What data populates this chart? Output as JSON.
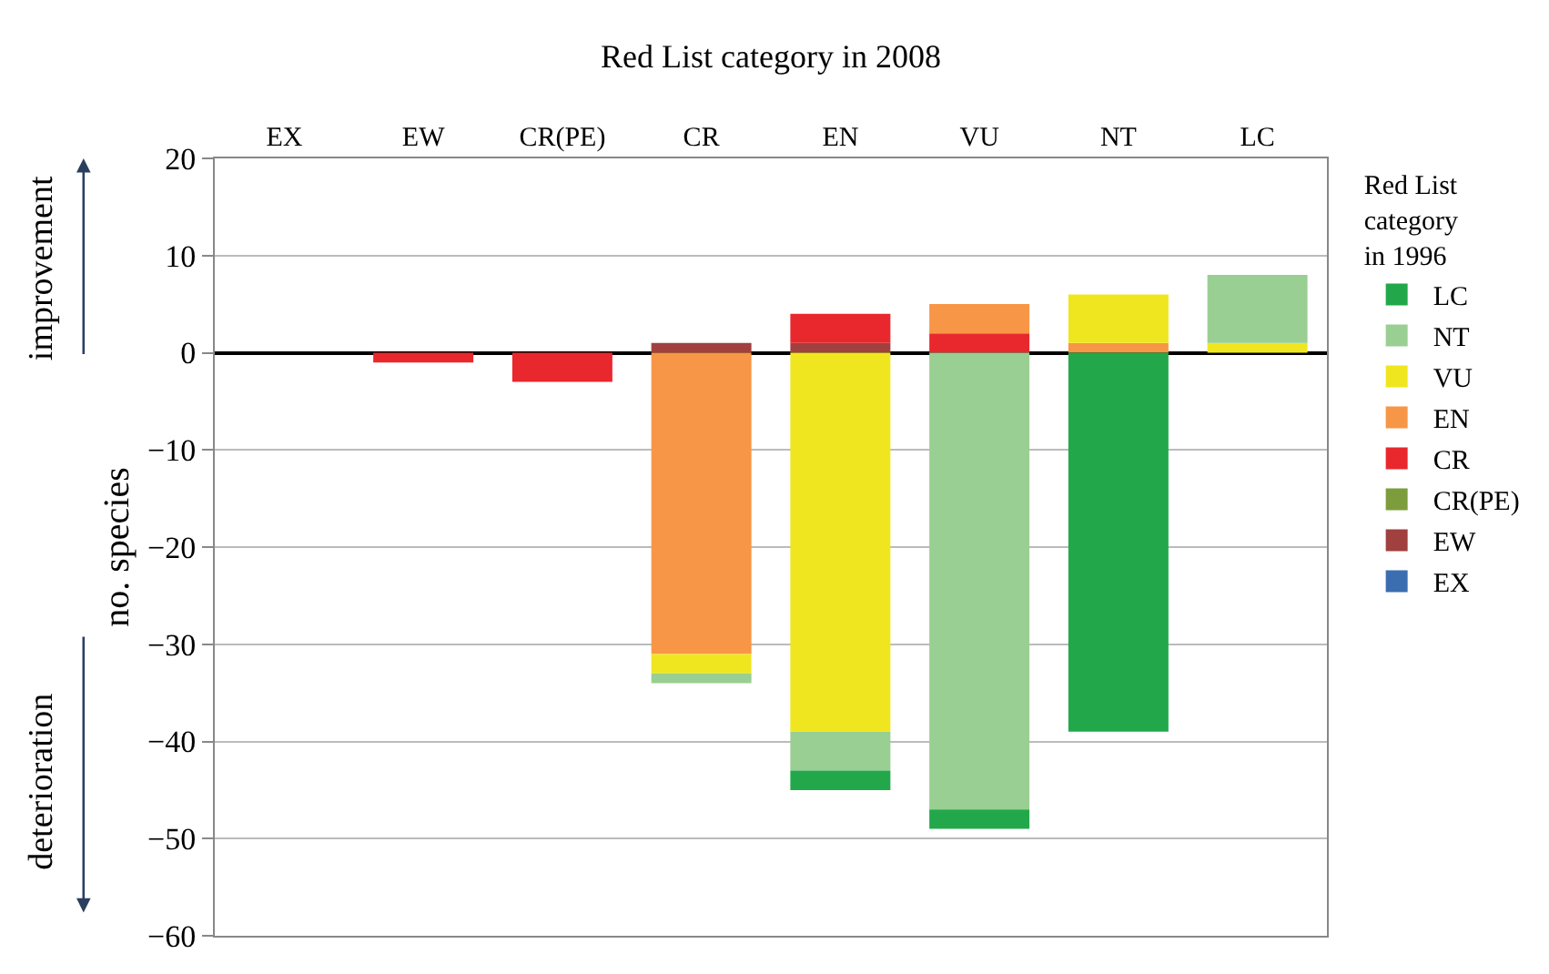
{
  "chart_data": {
    "type": "bar",
    "stacked": true,
    "title": "Red List category in 2008",
    "ylabel": "no. species",
    "legend_title": "Red List category in 1996",
    "categories": [
      "EX",
      "EW",
      "CR(PE)",
      "CR",
      "EN",
      "VU",
      "NT",
      "LC"
    ],
    "series": [
      {
        "name": "EX",
        "color": "#3a6eb0",
        "values": [
          null,
          null,
          null,
          null,
          null,
          null,
          null,
          null
        ]
      },
      {
        "name": "EW",
        "color": "#a0403f",
        "values": [
          null,
          null,
          null,
          1,
          1,
          null,
          null,
          null
        ]
      },
      {
        "name": "CR(PE)",
        "color": "#7d9d3c",
        "values": [
          null,
          null,
          null,
          null,
          null,
          null,
          null,
          null
        ]
      },
      {
        "name": "CR",
        "color": "#e8282d",
        "values": [
          null,
          -1,
          -3,
          null,
          3,
          2,
          null,
          null
        ]
      },
      {
        "name": "EN",
        "color": "#f79646",
        "values": [
          null,
          null,
          null,
          -31,
          null,
          3,
          1,
          null
        ]
      },
      {
        "name": "VU",
        "color": "#f0e620",
        "values": [
          null,
          null,
          null,
          -2,
          -39,
          null,
          5,
          1
        ]
      },
      {
        "name": "NT",
        "color": "#99cf92",
        "values": [
          null,
          null,
          null,
          -1,
          -4,
          -47,
          null,
          7
        ]
      },
      {
        "name": "LC",
        "color": "#22a84a",
        "values": [
          null,
          null,
          null,
          null,
          -2,
          -2,
          -39,
          null
        ]
      }
    ],
    "ylim": [
      -60,
      20
    ],
    "yticks": [
      -60,
      -50,
      -40,
      -30,
      -20,
      -10,
      0,
      10,
      20
    ],
    "grid": "y",
    "legend": "right",
    "annotations": [
      "improvement",
      "deterioration"
    ]
  }
}
